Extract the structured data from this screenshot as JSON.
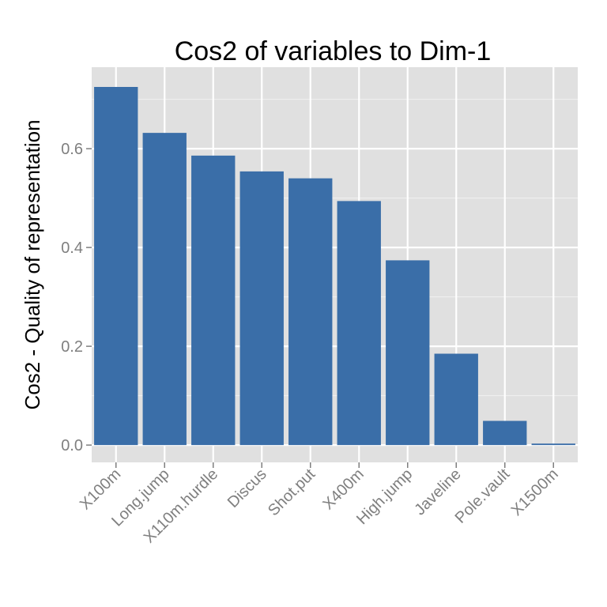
{
  "chart_data": {
    "type": "bar",
    "title": "Cos2 of variables to Dim-1",
    "xlabel": "",
    "ylabel": "Cos2 - Quality of representation",
    "categories": [
      "X100m",
      "Long.jump",
      "X110m.hurdle",
      "Discus",
      "Shot.put",
      "X400m",
      "High.jump",
      "Javeline",
      "Pole.vault",
      "X1500m"
    ],
    "values": [
      0.725,
      0.632,
      0.586,
      0.554,
      0.54,
      0.494,
      0.374,
      0.185,
      0.049,
      0.003
    ],
    "ylim": [
      -0.035,
      0.765
    ],
    "yticks": [
      0.0,
      0.2,
      0.4,
      0.6
    ],
    "ytick_labels": [
      "0.0",
      "0.2",
      "0.4",
      "0.6"
    ],
    "grid": true,
    "bar_color": "#3A6EA8",
    "panel_color": "#E0E0E0",
    "grid_color": "#FFFFFF"
  }
}
